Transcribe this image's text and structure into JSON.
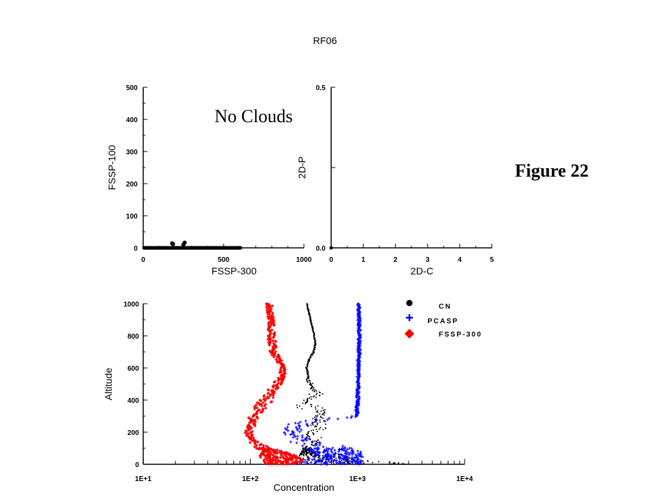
{
  "page_title": "RF06",
  "figure_label": "Figure 22",
  "chart_data": [
    {
      "id": "fssp",
      "type": "scatter",
      "xlabel": "FSSP-300",
      "ylabel": "FSSP-100",
      "xlim": [
        0,
        1000
      ],
      "ylim": [
        0,
        500
      ],
      "x_ticks": [
        0,
        500,
        1000
      ],
      "y_ticks": [
        0,
        100,
        200,
        300,
        400,
        500
      ],
      "annotation": "No Clouds",
      "grid": false,
      "series": [
        {
          "x_range": [
            5,
            605
          ],
          "y": 0,
          "count": 120
        },
        {
          "points": [
            [
              180,
              14
            ],
            [
              185,
              12
            ],
            [
              250,
              10
            ],
            [
              258,
              16
            ]
          ]
        }
      ]
    },
    {
      "id": "twod",
      "type": "scatter",
      "xlabel": "2D-C",
      "ylabel": "2D-P",
      "xlim": [
        0,
        5
      ],
      "ylim": [
        0,
        0.5
      ],
      "x_ticks": [
        0,
        1,
        2,
        3,
        4,
        5
      ],
      "y_ticks": [
        "0.0",
        "0.5"
      ],
      "grid": false,
      "series": [
        {
          "points": [
            [
              0,
              0
            ]
          ]
        }
      ]
    },
    {
      "id": "profile",
      "type": "scatter",
      "xlabel": "Concentration",
      "ylabel": "Altitude",
      "xscale": "log",
      "xlim": [
        10,
        10000
      ],
      "ylim": [
        0,
        1000
      ],
      "x_ticks": [
        "1E+1",
        "1E+2",
        "1E+3",
        "1E+4"
      ],
      "y_ticks": [
        0,
        200,
        400,
        600,
        800,
        1000
      ],
      "legend_position": "top-right",
      "grid": false,
      "series": [
        {
          "name": "CN",
          "color": "#000000",
          "marker": "dot",
          "profile": [
            [
              0,
              600,
              3000
            ],
            [
              20,
              300,
              1300
            ],
            [
              40,
              260,
              700
            ],
            [
              60,
              290,
              420
            ],
            [
              80,
              300,
              380
            ],
            [
              100,
              310,
              370
            ],
            [
              150,
              320,
              450
            ],
            [
              200,
              340,
              500
            ],
            [
              240,
              360,
              520
            ],
            [
              280,
              380,
              480
            ],
            [
              320,
              420,
              500
            ],
            [
              340,
              300,
              520
            ],
            [
              360,
              250,
              450
            ],
            [
              380,
              280,
              330
            ],
            [
              400,
              320,
              380
            ],
            [
              440,
              360,
              480
            ],
            [
              480,
              360,
              420
            ],
            [
              520,
              330,
              360
            ],
            [
              560,
              340,
              350
            ],
            [
              600,
              330,
              340
            ],
            [
              650,
              345,
              360
            ],
            [
              700,
              380,
              400
            ],
            [
              750,
              400,
              410
            ],
            [
              800,
              390,
              400
            ],
            [
              900,
              360,
              370
            ],
            [
              1000,
              330,
              340
            ]
          ]
        },
        {
          "name": "PCASP",
          "color": "#0000ff",
          "marker": "plus",
          "profile": [
            [
              0,
              250,
              1100
            ],
            [
              20,
              320,
              1150
            ],
            [
              40,
              360,
              1150
            ],
            [
              60,
              400,
              1150
            ],
            [
              80,
              350,
              1050
            ],
            [
              100,
              300,
              900
            ],
            [
              140,
              230,
              400
            ],
            [
              180,
              200,
              300
            ],
            [
              220,
              210,
              320
            ],
            [
              260,
              230,
              400
            ],
            [
              280,
              400,
              800
            ],
            [
              300,
              960,
              1030
            ],
            [
              350,
              960,
              1030
            ],
            [
              400,
              970,
              1040
            ],
            [
              500,
              990,
              1050
            ],
            [
              600,
              990,
              1050
            ],
            [
              700,
              1000,
              1070
            ],
            [
              800,
              1010,
              1080
            ],
            [
              900,
              1000,
              1070
            ],
            [
              1000,
              1000,
              1060
            ]
          ]
        },
        {
          "name": "FSSP-300",
          "color": "#ff0000",
          "marker": "diamond",
          "profile": [
            [
              0,
              140,
              280
            ],
            [
              20,
              130,
              330
            ],
            [
              40,
              120,
              300
            ],
            [
              60,
              120,
              250
            ],
            [
              80,
              130,
              200
            ],
            [
              100,
              110,
              150
            ],
            [
              150,
              95,
              110
            ],
            [
              200,
              88,
              105
            ],
            [
              250,
              95,
              115
            ],
            [
              300,
              95,
              120
            ],
            [
              350,
              105,
              140
            ],
            [
              400,
              120,
              170
            ],
            [
              450,
              140,
              180
            ],
            [
              500,
              160,
              200
            ],
            [
              550,
              180,
              210
            ],
            [
              600,
              190,
              215
            ],
            [
              700,
              150,
              175
            ],
            [
              800,
              145,
              175
            ],
            [
              900,
              145,
              165
            ],
            [
              1000,
              140,
              160
            ]
          ]
        }
      ]
    }
  ]
}
